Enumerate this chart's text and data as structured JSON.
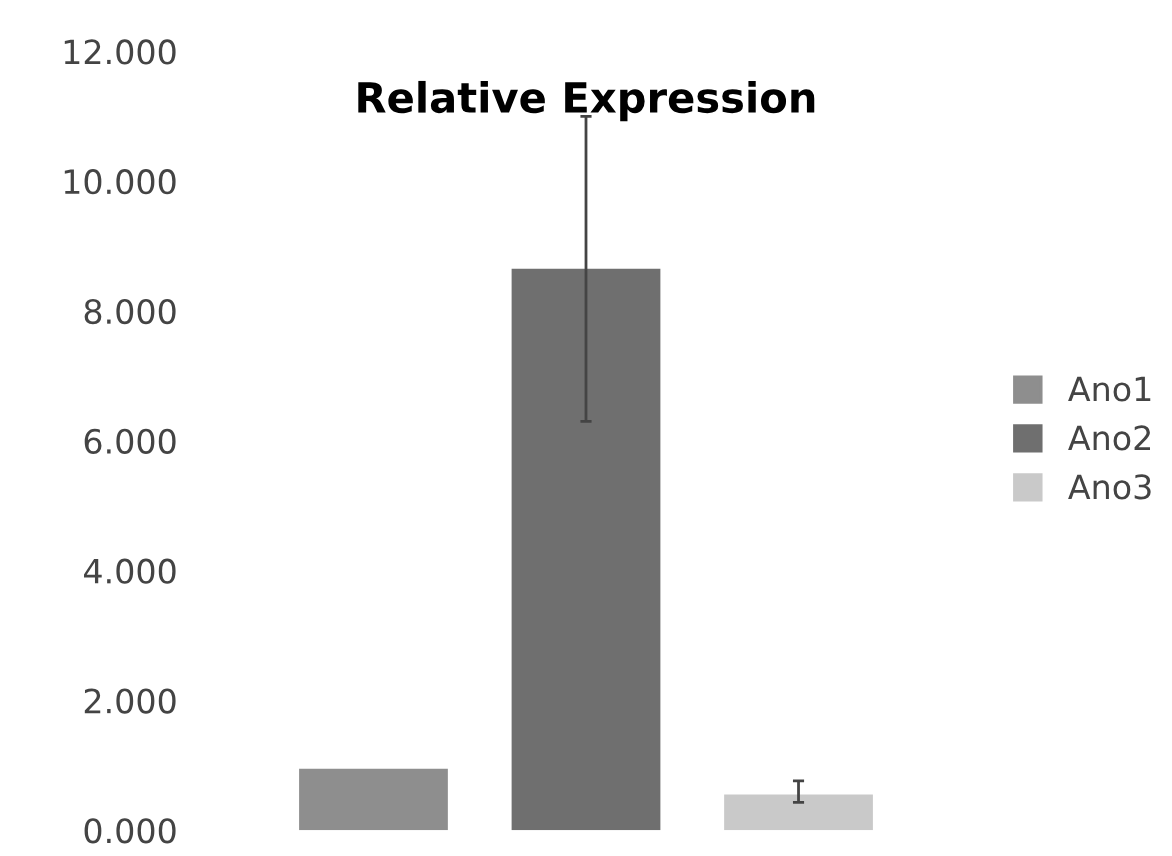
{
  "chart_data": {
    "type": "bar",
    "title": "Relative Expression",
    "categories": [
      null
    ],
    "series": [
      {
        "name": "Ano1",
        "color": "#8e8e8e",
        "values": [
          0.95
        ]
      },
      {
        "name": "Ano2",
        "color": "#6f6f6f",
        "values": [
          8.65
        ],
        "errors": [
          [
            6.3,
            11.0
          ]
        ]
      },
      {
        "name": "Ano3",
        "color": "#c9c9c9",
        "values": [
          0.55
        ],
        "errors": [
          [
            0.43,
            0.76
          ]
        ]
      }
    ],
    "ylim": [
      0,
      12
    ],
    "yticks": [
      {
        "value": 0,
        "label": "0.000"
      },
      {
        "value": 2,
        "label": "2.000"
      },
      {
        "value": 4,
        "label": "4.000"
      },
      {
        "value": 6,
        "label": "6.000"
      },
      {
        "value": 8,
        "label": "8.000"
      },
      {
        "value": 10,
        "label": "10.000"
      },
      {
        "value": 12,
        "label": "12.000"
      }
    ],
    "tick_labels": "y",
    "legend": "right",
    "grid": false
  }
}
